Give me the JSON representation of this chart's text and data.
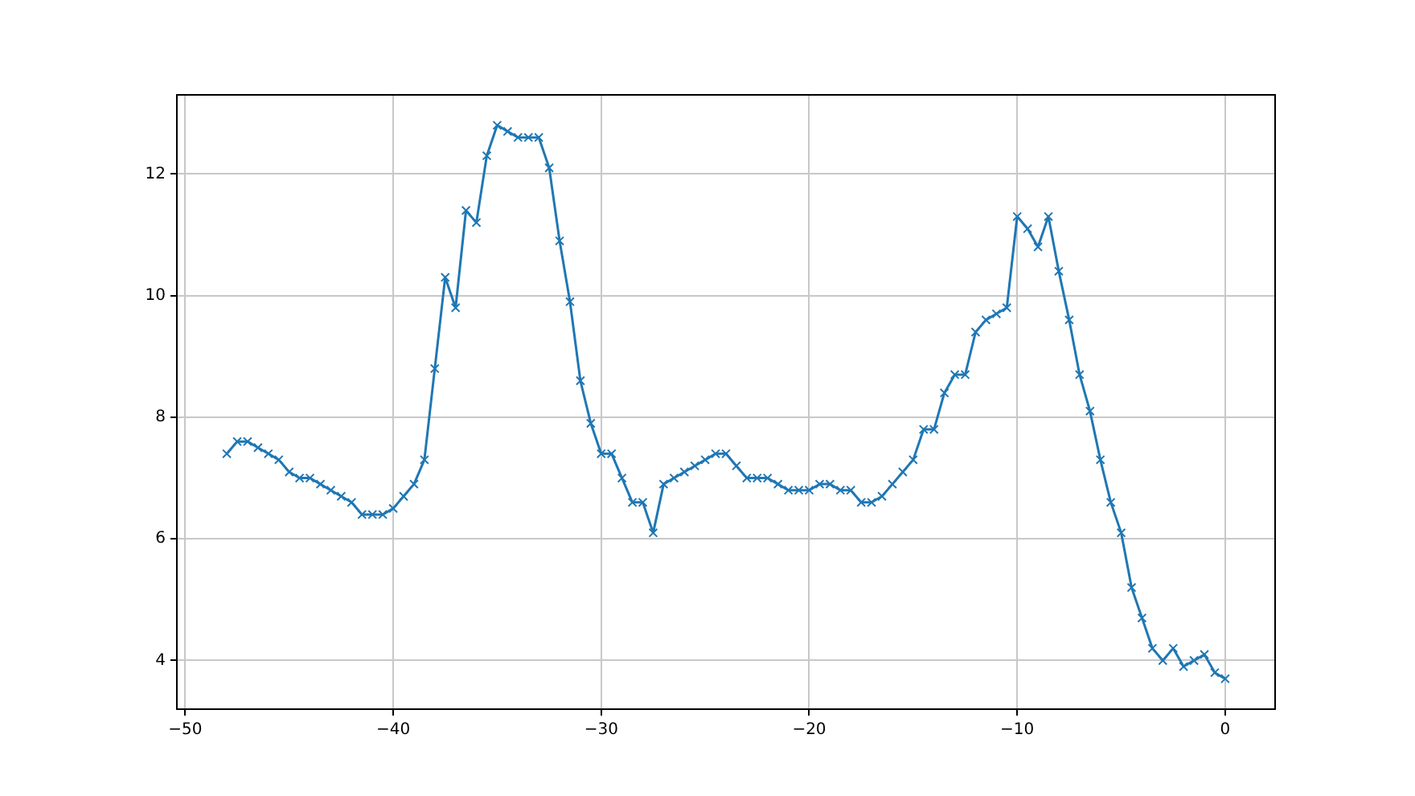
{
  "chart_data": {
    "type": "line",
    "x": [
      -48,
      -47.5,
      -47,
      -46.5,
      -46,
      -45.5,
      -45,
      -44.5,
      -44,
      -43.5,
      -43,
      -42.5,
      -42,
      -41.5,
      -41,
      -40.5,
      -40,
      -39.5,
      -39,
      -38.5,
      -38,
      -37.5,
      -37,
      -36.5,
      -36,
      -35.5,
      -35,
      -34.5,
      -34,
      -33.5,
      -33,
      -32.5,
      -32,
      -31.5,
      -31,
      -30.5,
      -30,
      -29.5,
      -29,
      -28.5,
      -28,
      -27.5,
      -27,
      -26.5,
      -26,
      -25.5,
      -25,
      -24.5,
      -24,
      -23.5,
      -23,
      -22.5,
      -22,
      -21.5,
      -21,
      -20.5,
      -20,
      -19.5,
      -19,
      -18.5,
      -18,
      -17.5,
      -17,
      -16.5,
      -16,
      -15.5,
      -15,
      -14.5,
      -14,
      -13.5,
      -13,
      -12.5,
      -12,
      -11.5,
      -11,
      -10.5,
      -10,
      -9.5,
      -9,
      -8.5,
      -8,
      -7.5,
      -7,
      -6.5,
      -6,
      -5.5,
      -5,
      -4.5,
      -4,
      -3.5,
      -3,
      -2.5,
      -2,
      -1.5,
      -1,
      -0.5,
      0
    ],
    "series": [
      {
        "color": "#1f77b4",
        "values": [
          7.4,
          7.6,
          7.6,
          7.5,
          7.4,
          7.3,
          7.1,
          7.0,
          7.0,
          6.9,
          6.8,
          6.7,
          6.6,
          6.4,
          6.4,
          6.4,
          6.5,
          6.7,
          6.9,
          7.3,
          8.8,
          10.3,
          9.8,
          11.4,
          11.2,
          12.3,
          12.8,
          12.7,
          12.6,
          12.6,
          12.6,
          12.1,
          10.9,
          9.9,
          8.6,
          7.9,
          7.4,
          7.4,
          7.0,
          6.6,
          6.6,
          6.1,
          6.9,
          7.0,
          7.1,
          7.2,
          7.3,
          7.4,
          7.4,
          7.2,
          7.0,
          7.0,
          7.0,
          6.9,
          6.8,
          6.8,
          6.8,
          6.9,
          6.9,
          6.8,
          6.8,
          6.6,
          6.6,
          6.7,
          6.9,
          7.1,
          7.3,
          7.8,
          7.8,
          8.4,
          8.7,
          8.7,
          9.4,
          9.6,
          9.7,
          9.8,
          11.3,
          11.1,
          10.8,
          11.3,
          10.4,
          9.6,
          8.7,
          8.1,
          7.3,
          6.6,
          6.1,
          5.2,
          4.7,
          4.2,
          4.0,
          4.2,
          3.9,
          4.0,
          4.1,
          3.8,
          3.7
        ]
      }
    ],
    "xlim": [
      -50.4,
      2.4
    ],
    "ylim": [
      3.2,
      13.3
    ],
    "xticks": [
      -50,
      -40,
      -30,
      -20,
      -10,
      0
    ],
    "yticks": [
      4,
      6,
      8,
      10,
      12
    ],
    "grid": true,
    "marker": "cross",
    "line_style": "solid",
    "legend": false
  }
}
